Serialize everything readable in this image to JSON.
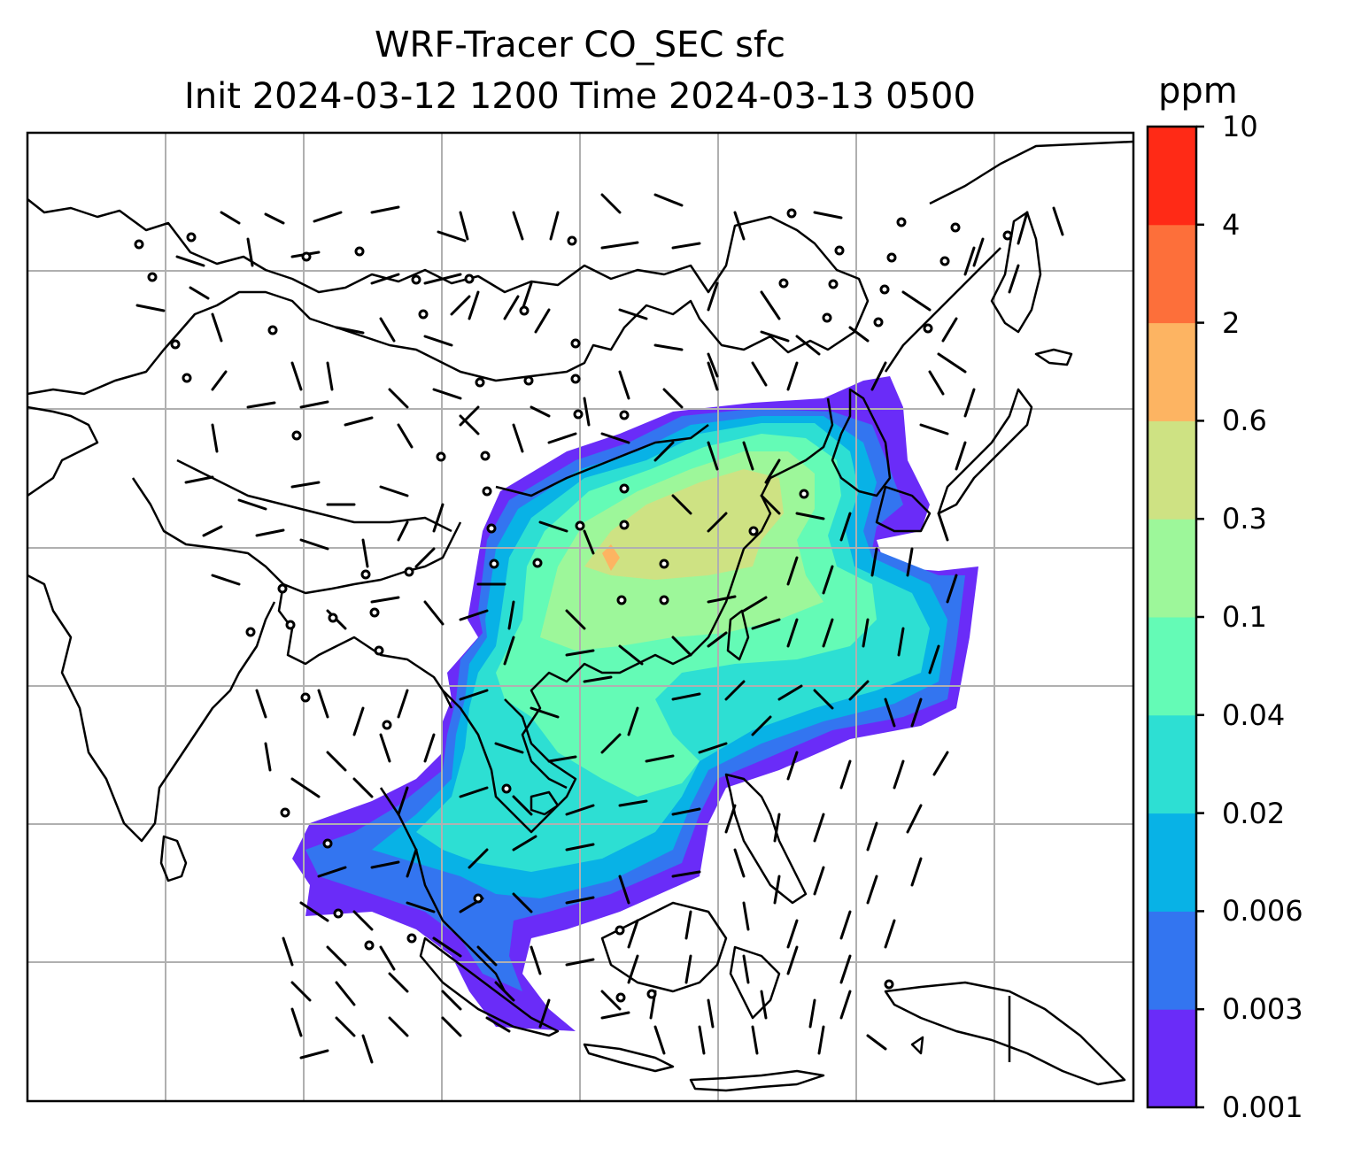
{
  "title": {
    "line1": "WRF-Tracer CO_SEC sfc",
    "line2": "Init 2024-03-12 1200 Time 2024-03-13 0500"
  },
  "colorbar": {
    "unit": "ppm",
    "levels": [
      "0.001",
      "0.003",
      "0.006",
      "0.02",
      "0.04",
      "0.1",
      "0.3",
      "0.6",
      "2",
      "4",
      "10"
    ],
    "colors": [
      "#6a2cf8",
      "#3375f0",
      "#08b2e6",
      "#2ddfd3",
      "#64fbb6",
      "#9df79a",
      "#cee283",
      "#fdb462",
      "#fd6f3a",
      "#ff2a16"
    ]
  },
  "map": {
    "background": "#ffffff",
    "coastline_color": "#000000",
    "gridline_color": "#b0b0b0",
    "wind_barbs": "black"
  }
}
